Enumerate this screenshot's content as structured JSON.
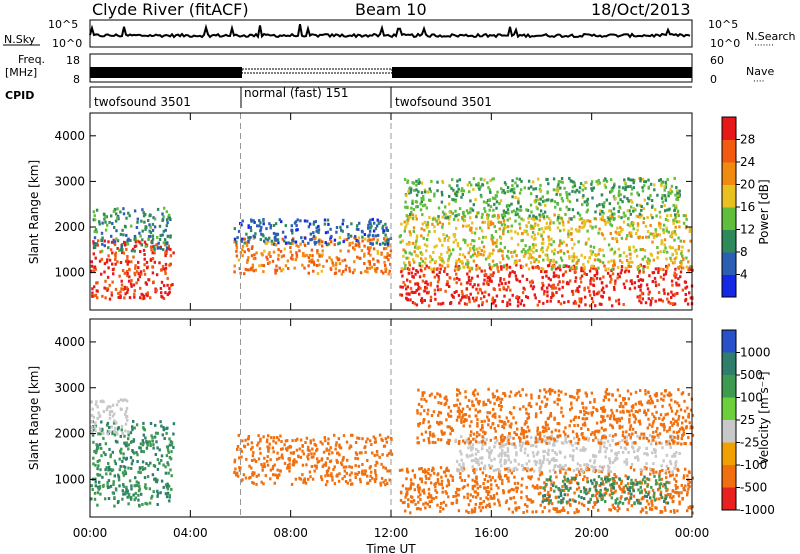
{
  "header": {
    "station": "Clyde River (fitACF)",
    "beam": "Beam 10",
    "date": "18/Oct/2013"
  },
  "top_panel": {
    "left_label": "N.Sky",
    "left_ticks": [
      "10^5",
      "10^0"
    ],
    "right_ticks": [
      "10^5",
      "10^0"
    ],
    "right_label": "N.Search",
    "right_marker": "·······"
  },
  "freq_panel": {
    "left_label_1": "Freq.",
    "left_label_2": "[MHz]",
    "left_ticks": [
      "18",
      "8"
    ],
    "right_ticks": [
      "60",
      "0"
    ],
    "right_label": "Nave",
    "right_marker": "····"
  },
  "cpid": {
    "label": "CPID",
    "segments": [
      {
        "name": "twofsound 3501",
        "start_hour": 0,
        "end_hour": 6
      },
      {
        "name": "normal (fast) 151",
        "start_hour": 6,
        "end_hour": 12
      },
      {
        "name": "twofsound 3501",
        "start_hour": 12,
        "end_hour": 24
      }
    ]
  },
  "time_axis": {
    "label": "Time UT",
    "ticks": [
      "00:00",
      "04:00",
      "08:00",
      "12:00",
      "16:00",
      "20:00",
      "00:00"
    ]
  },
  "chart_data": [
    {
      "type": "heatmap",
      "panel": "power",
      "ylabel": "Slant Range [km]",
      "yticks": [
        1000,
        2000,
        3000,
        4000
      ],
      "ylim": [
        180,
        4500
      ],
      "xlim_hours": [
        0,
        24
      ],
      "colorbar": {
        "label": "Power [dB]",
        "ticks": [
          "28",
          "24",
          "20",
          "16",
          "12",
          "8",
          "4"
        ],
        "range": [
          0,
          30
        ],
        "colors": [
          "#1428e6",
          "#2c5fb4",
          "#2e8a5a",
          "#5fbf3c",
          "#e8c020",
          "#f08a10",
          "#f25a10",
          "#e81818"
        ]
      },
      "scatter_regions": [
        {
          "t0": 0.0,
          "t1": 3.3,
          "r0": 450,
          "r1": 1750,
          "value": 27
        },
        {
          "t0": 0.1,
          "t1": 3.2,
          "r0": 1500,
          "r1": 2450,
          "value": 9
        },
        {
          "t0": 5.7,
          "t1": 12.0,
          "r0": 1000,
          "r1": 1800,
          "value": 22
        },
        {
          "t0": 5.7,
          "t1": 12.0,
          "r0": 1650,
          "r1": 2200,
          "value": 6
        },
        {
          "t0": 12.3,
          "t1": 24.0,
          "r0": 300,
          "r1": 1200,
          "value": 28
        },
        {
          "t0": 12.3,
          "t1": 24.0,
          "r0": 1100,
          "r1": 2300,
          "value": 17
        },
        {
          "t0": 12.5,
          "t1": 23.5,
          "r0": 2200,
          "r1": 3100,
          "value": 12
        }
      ],
      "reference_lines_hours": [
        6,
        12
      ]
    },
    {
      "type": "heatmap",
      "panel": "velocity",
      "ylabel": "Slant Range [km]",
      "yticks": [
        1000,
        2000,
        3000,
        4000
      ],
      "ylim": [
        180,
        4500
      ],
      "xlim_hours": [
        0,
        24
      ],
      "colorbar": {
        "label": "Velocity [m s⁻¹]",
        "ticks": [
          "1000",
          "500",
          "100",
          "25",
          "-25",
          "-100",
          "-500",
          "-1000"
        ],
        "colors": [
          "#2850c8",
          "#2e7e6a",
          "#3e9a50",
          "#6ccf3c",
          "#c8c8c8",
          "#f0a000",
          "#f07010",
          "#e82020"
        ]
      },
      "scatter_regions": [
        {
          "t0": 0.0,
          "t1": 3.3,
          "r0": 450,
          "r1": 2300,
          "value": 300
        },
        {
          "t0": 0.0,
          "t1": 1.5,
          "r0": 2000,
          "r1": 2800,
          "value": 0
        },
        {
          "t0": 5.7,
          "t1": 12.0,
          "r0": 900,
          "r1": 2000,
          "value": -300
        },
        {
          "t0": 12.3,
          "t1": 24.0,
          "r0": 300,
          "r1": 1300,
          "value": -300
        },
        {
          "t0": 14.5,
          "t1": 23.5,
          "r0": 1200,
          "r1": 2000,
          "value": 0
        },
        {
          "t0": 18.0,
          "t1": 23.0,
          "r0": 500,
          "r1": 1100,
          "value": 300
        },
        {
          "t0": 13.0,
          "t1": 24.0,
          "r0": 1800,
          "r1": 3000,
          "value": -150
        }
      ],
      "reference_lines_hours": [
        6,
        12
      ]
    }
  ]
}
